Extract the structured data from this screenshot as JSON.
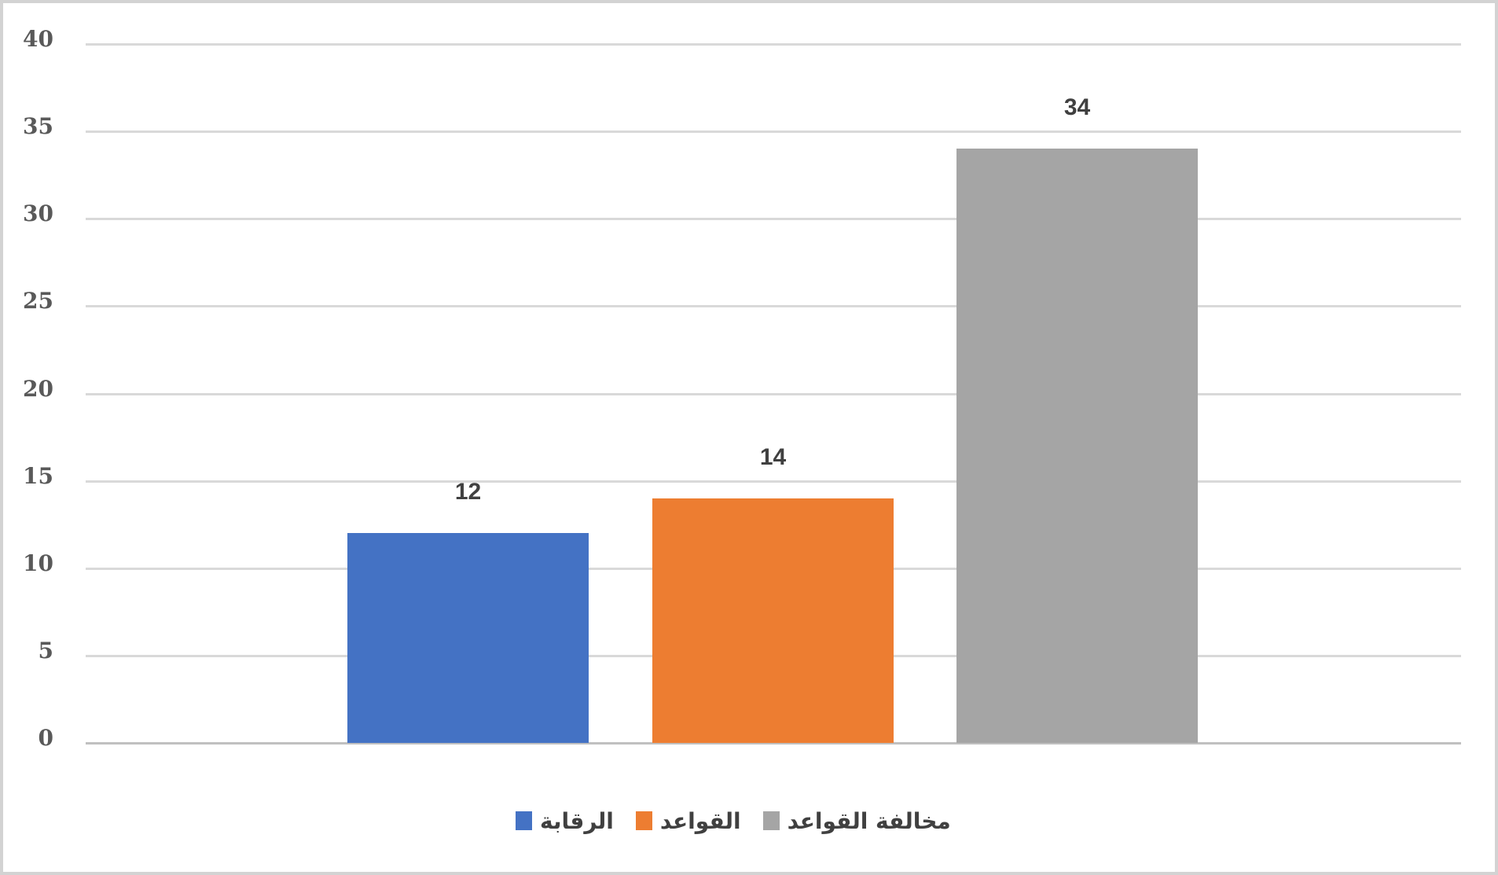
{
  "chart_data": {
    "type": "bar",
    "title": "",
    "xlabel": "",
    "ylabel": "",
    "categories": [
      "الرقابة",
      "القواعد",
      "مخالفة القواعد"
    ],
    "series": [
      {
        "name": "الرقابة",
        "value": 12,
        "color": "#4472C4"
      },
      {
        "name": "القواعد",
        "value": 14,
        "color": "#ED7D31"
      },
      {
        "name": "مخالفة القواعد",
        "value": 34,
        "color": "#A5A5A5"
      }
    ],
    "data_labels": [
      "12",
      "14",
      "34"
    ],
    "y_axis": {
      "min": 0,
      "max": 40,
      "step": 5,
      "ticks": [
        0,
        5,
        10,
        15,
        20,
        25,
        30,
        35,
        40
      ],
      "tick_labels": [
        "0",
        "5",
        "10",
        "15",
        "20",
        "25",
        "30",
        "35",
        "40"
      ]
    },
    "grid": true,
    "legend_position": "bottom"
  },
  "colors": {
    "background": "#FFFFFF",
    "canvas_border": "#D3D3D3",
    "gridline": "#D9D9D9",
    "zero_line": "#C0C0C0",
    "axis_text": "#595959",
    "data_label_text": "#404040",
    "legend_text": "#404040"
  }
}
